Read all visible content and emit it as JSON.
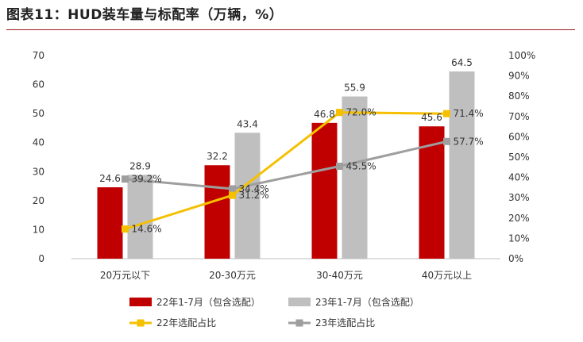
{
  "title": "图表11：HUD装车量与标配率（万辆，%）",
  "chart_data": {
    "type": "bar",
    "categories": [
      "20万元以下",
      "20-30万元",
      "30-40万元",
      "40万元以上"
    ],
    "series": [
      {
        "name": "22年1-7月（包含选配）",
        "kind": "bar",
        "axis": "left",
        "color": "#c00000",
        "values": [
          24.6,
          32.2,
          46.8,
          45.6
        ]
      },
      {
        "name": "23年1-7月（包含选配）",
        "kind": "bar",
        "axis": "left",
        "color": "#bfbfbf",
        "values": [
          28.9,
          43.4,
          55.9,
          64.5
        ]
      },
      {
        "name": "22年选配占比",
        "kind": "line",
        "axis": "right",
        "color": "#f5c000",
        "values": [
          14.6,
          31.2,
          72.0,
          71.4
        ]
      },
      {
        "name": "23年选配占比",
        "kind": "line",
        "axis": "right",
        "color": "#9e9e9e",
        "values": [
          39.2,
          34.4,
          45.5,
          57.7
        ]
      }
    ],
    "value_labels": {
      "bar_22": [
        "24.6",
        "32.2",
        "46.8",
        "45.6"
      ],
      "bar_23": [
        "28.9",
        "43.4",
        "55.9",
        "64.5"
      ],
      "line_22": [
        "14.6%",
        "31.2%",
        "72.0%",
        "71.4%"
      ],
      "line_23": [
        "39.2%",
        "34.4%",
        "45.5%",
        "57.7%"
      ]
    },
    "y_left": {
      "min": 0,
      "max": 70,
      "ticks": [
        "0",
        "10",
        "20",
        "30",
        "40",
        "50",
        "60",
        "70"
      ]
    },
    "y_right": {
      "min": 0,
      "max": 100,
      "ticks": [
        "0%",
        "10%",
        "20%",
        "30%",
        "40%",
        "50%",
        "60%",
        "70%",
        "80%",
        "90%",
        "100%"
      ]
    },
    "legend": [
      "22年1-7月（包含选配）",
      "23年1-7月（包含选配）",
      "22年选配占比",
      "23年选配占比"
    ],
    "legend_position": "bottom",
    "grid": false
  }
}
